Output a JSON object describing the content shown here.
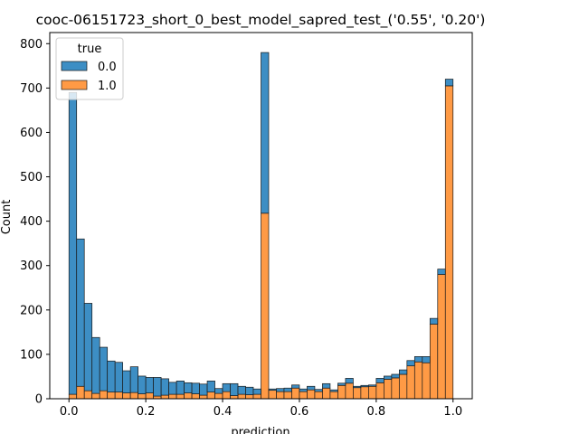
{
  "chart_data": {
    "type": "bar",
    "subtype": "stacked-histogram",
    "title": "cooc-06151723_short_0_best_model_sapred_test_('0.55', '0.20')",
    "xlabel": "prediction",
    "ylabel": "Count",
    "xlim": [
      -0.05,
      1.05
    ],
    "ylim": [
      0,
      825
    ],
    "grid": false,
    "xticks": [
      0.0,
      0.2,
      0.4,
      0.6,
      0.8,
      1.0
    ],
    "xtick_labels": [
      "0.0",
      "0.2",
      "0.4",
      "0.6",
      "0.8",
      "1.0"
    ],
    "yticks": [
      0,
      100,
      200,
      300,
      400,
      500,
      600,
      700,
      800
    ],
    "ytick_labels": [
      "0",
      "100",
      "200",
      "300",
      "400",
      "500",
      "600",
      "700",
      "800"
    ],
    "bin_count": 50,
    "bin_range": [
      0.0,
      1.0
    ],
    "legend": {
      "title": "true",
      "placement": "upper-left",
      "entries": [
        "0.0",
        "1.0"
      ]
    },
    "series": [
      {
        "name": "1.0",
        "color": "#ff9a45",
        "values": [
          10,
          28,
          18,
          12,
          18,
          15,
          15,
          13,
          14,
          11,
          13,
          6,
          8,
          10,
          10,
          13,
          11,
          8,
          15,
          12,
          16,
          7,
          10,
          9,
          10,
          418,
          19,
          16,
          16,
          24,
          16,
          20,
          16,
          24,
          16,
          30,
          35,
          25,
          27,
          28,
          36,
          44,
          47,
          55,
          74,
          83,
          81,
          168,
          280,
          705
        ]
      },
      {
        "name": "0.0",
        "color": "#3d8ec4",
        "values": [
          680,
          332,
          197,
          126,
          98,
          70,
          67,
          50,
          58,
          40,
          35,
          42,
          37,
          27,
          30,
          23,
          24,
          25,
          25,
          11,
          18,
          27,
          18,
          17,
          12,
          362,
          3,
          7,
          8,
          7,
          6,
          8,
          5,
          10,
          4,
          5,
          11,
          3,
          3,
          3,
          10,
          7,
          8,
          10,
          12,
          12,
          14,
          13,
          12,
          15
        ]
      }
    ]
  }
}
